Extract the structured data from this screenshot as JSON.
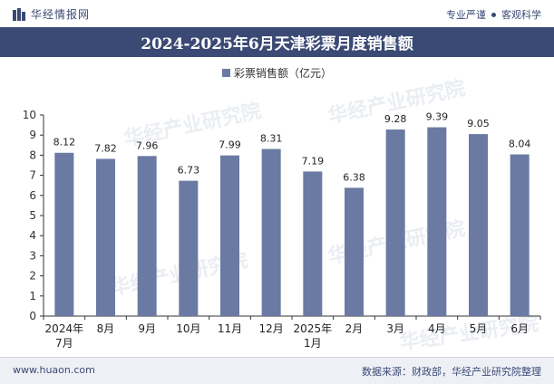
{
  "header": {
    "brand": "华经情报网",
    "tagline_left": "专业严谨",
    "tagline_right": "客观科学"
  },
  "chart_data": {
    "type": "bar",
    "title": "2024-2025年6月天津彩票月度销售额",
    "legend": [
      "彩票销售额（亿元）"
    ],
    "categories": [
      "2024年7月",
      "8月",
      "9月",
      "10月",
      "11月",
      "12月",
      "2025年1月",
      "2月",
      "3月",
      "4月",
      "5月",
      "6月"
    ],
    "series": [
      {
        "name": "彩票销售额（亿元）",
        "values": [
          8.12,
          7.82,
          7.96,
          6.73,
          7.99,
          8.31,
          7.19,
          6.38,
          9.28,
          9.39,
          9.05,
          8.04
        ]
      }
    ],
    "ylim": [
      0,
      10
    ],
    "yticks": [
      0,
      1,
      2,
      3,
      4,
      5,
      6,
      7,
      8,
      9,
      10
    ],
    "grid": false,
    "legend_position": "top-center",
    "bar_color": "#6a7aa3"
  },
  "watermark": "华经产业研究院",
  "footer": {
    "url": "www.huaon.com",
    "source": "数据来源：财政部，华经产业研究院整理"
  }
}
